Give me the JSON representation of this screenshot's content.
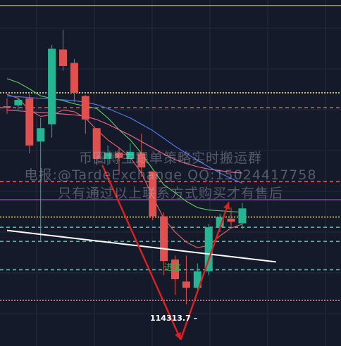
{
  "chart_data": {
    "type": "candlestick",
    "title": "",
    "xlabel": "",
    "ylabel": "",
    "ylim": [
      113800,
      118200
    ],
    "grid": true,
    "candles": [
      {
        "o": 116850,
        "h": 116950,
        "l": 116750,
        "c": 116830
      },
      {
        "o": 116860,
        "h": 116960,
        "l": 116800,
        "c": 116930
      },
      {
        "o": 116950,
        "h": 117000,
        "l": 116250,
        "c": 116350
      },
      {
        "o": 116400,
        "h": 116700,
        "l": 115130,
        "c": 116570
      },
      {
        "o": 116620,
        "h": 117630,
        "l": 116450,
        "c": 117580
      },
      {
        "o": 117570,
        "h": 117820,
        "l": 117300,
        "c": 117360
      },
      {
        "o": 117400,
        "h": 117450,
        "l": 116900,
        "c": 117020
      },
      {
        "o": 116980,
        "h": 116990,
        "l": 116500,
        "c": 116680
      },
      {
        "o": 116570,
        "h": 116570,
        "l": 116100,
        "c": 116180
      },
      {
        "o": 116180,
        "h": 116350,
        "l": 116100,
        "c": 116260
      },
      {
        "o": 116260,
        "h": 116330,
        "l": 115980,
        "c": 116190
      },
      {
        "o": 116180,
        "h": 116380,
        "l": 116130,
        "c": 116270
      },
      {
        "o": 116250,
        "h": 116500,
        "l": 115950,
        "c": 116070
      },
      {
        "o": 116020,
        "h": 116020,
        "l": 115400,
        "c": 115450
      },
      {
        "o": 115450,
        "h": 115500,
        "l": 114700,
        "c": 114880
      },
      {
        "o": 114900,
        "h": 114950,
        "l": 114450,
        "c": 114650
      },
      {
        "o": 114620,
        "h": 114950,
        "l": 114330,
        "c": 114540
      },
      {
        "o": 114540,
        "h": 114850,
        "l": 114500,
        "c": 114750
      },
      {
        "o": 114750,
        "h": 115350,
        "l": 114700,
        "c": 115310
      },
      {
        "o": 115310,
        "h": 115480,
        "l": 115250,
        "c": 115440
      },
      {
        "o": 115420,
        "h": 115560,
        "l": 115330,
        "c": 115380
      },
      {
        "o": 115360,
        "h": 115620,
        "l": 115290,
        "c": 115550
      }
    ],
    "moving_averages": [
      {
        "color": "#56c458",
        "values": [
          117200,
          117150,
          117070,
          116980,
          116950,
          116920,
          116880,
          116850,
          116820,
          116700,
          116550,
          116420,
          116250,
          116050,
          115850,
          115750,
          115640,
          115560,
          115530,
          115520,
          115510,
          115500
        ]
      },
      {
        "color": "#e05a5a",
        "values": [
          117000,
          116950,
          116800,
          116720,
          116740,
          116800,
          116780,
          116700,
          116550,
          116420,
          116320,
          116200,
          116000,
          115700,
          115420,
          115250,
          115120,
          115050,
          115080,
          115200,
          115300,
          115350
        ]
      },
      {
        "color": "#4a78e0",
        "values": [
          116980,
          116970,
          116960,
          116950,
          116940,
          116930,
          116920,
          116900,
          116870,
          116820,
          116760,
          116700,
          116620,
          116540,
          116440,
          116340,
          116250,
          116160,
          116080,
          116000,
          115930,
          115870
        ]
      },
      {
        "color": "#e0608a",
        "values": [
          116800,
          116790,
          116780,
          116770,
          116760,
          116750,
          116740,
          116720,
          116680,
          116620,
          116550,
          116480,
          116400,
          116320,
          116240,
          116170,
          116120,
          116080,
          116050,
          116030,
          116010,
          116000
        ]
      }
    ],
    "horizontal_levels": [
      {
        "value": 118130,
        "color": "#e8e07a",
        "style": "solid"
      },
      {
        "value": 117020,
        "color": "#e8e07a",
        "style": "dotted"
      },
      {
        "value": 116830,
        "color": "#d85a5a",
        "style": "dashed"
      },
      {
        "value": 115890,
        "color": "#d85a5a",
        "style": "dashed"
      },
      {
        "value": 115660,
        "color": "#b366d9",
        "style": "solid"
      },
      {
        "value": 115440,
        "color": "#e8e07a",
        "style": "dotted"
      },
      {
        "value": 115310,
        "color": "#4fb8a0",
        "style": "dashed"
      },
      {
        "value": 115130,
        "color": "#4fb8a0",
        "style": "dashed"
      },
      {
        "value": 114770,
        "color": "#4fb8a0",
        "style": "dashed"
      },
      {
        "value": 114380,
        "color": "#e06a7a",
        "style": "dotted"
      }
    ],
    "trendline": {
      "from": [
        0,
        115270
      ],
      "to": [
        24,
        114870
      ],
      "color": "#ffffff"
    },
    "arrows": [
      {
        "from": [
          8.5,
          116100
        ],
        "to": [
          15.5,
          113880
        ],
        "color": "#e02020"
      },
      {
        "from": [
          15.5,
          113880
        ],
        "to": [
          19.8,
          115630
        ],
        "color": "#e02020"
      }
    ],
    "annotations": {
      "low_price_label": "114313.7 –",
      "chan_label": "进宝",
      "watermark_lines": [
        "币圈博主跟单策略实时搬运群",
        "电报:@TardeExchange QQ:15024417758",
        "只有通过以上联系方式购买才有售后"
      ]
    },
    "colors": {
      "up": "#26b592",
      "down": "#e0504f",
      "background": "#141a2a",
      "grid": "#232a3c"
    }
  }
}
